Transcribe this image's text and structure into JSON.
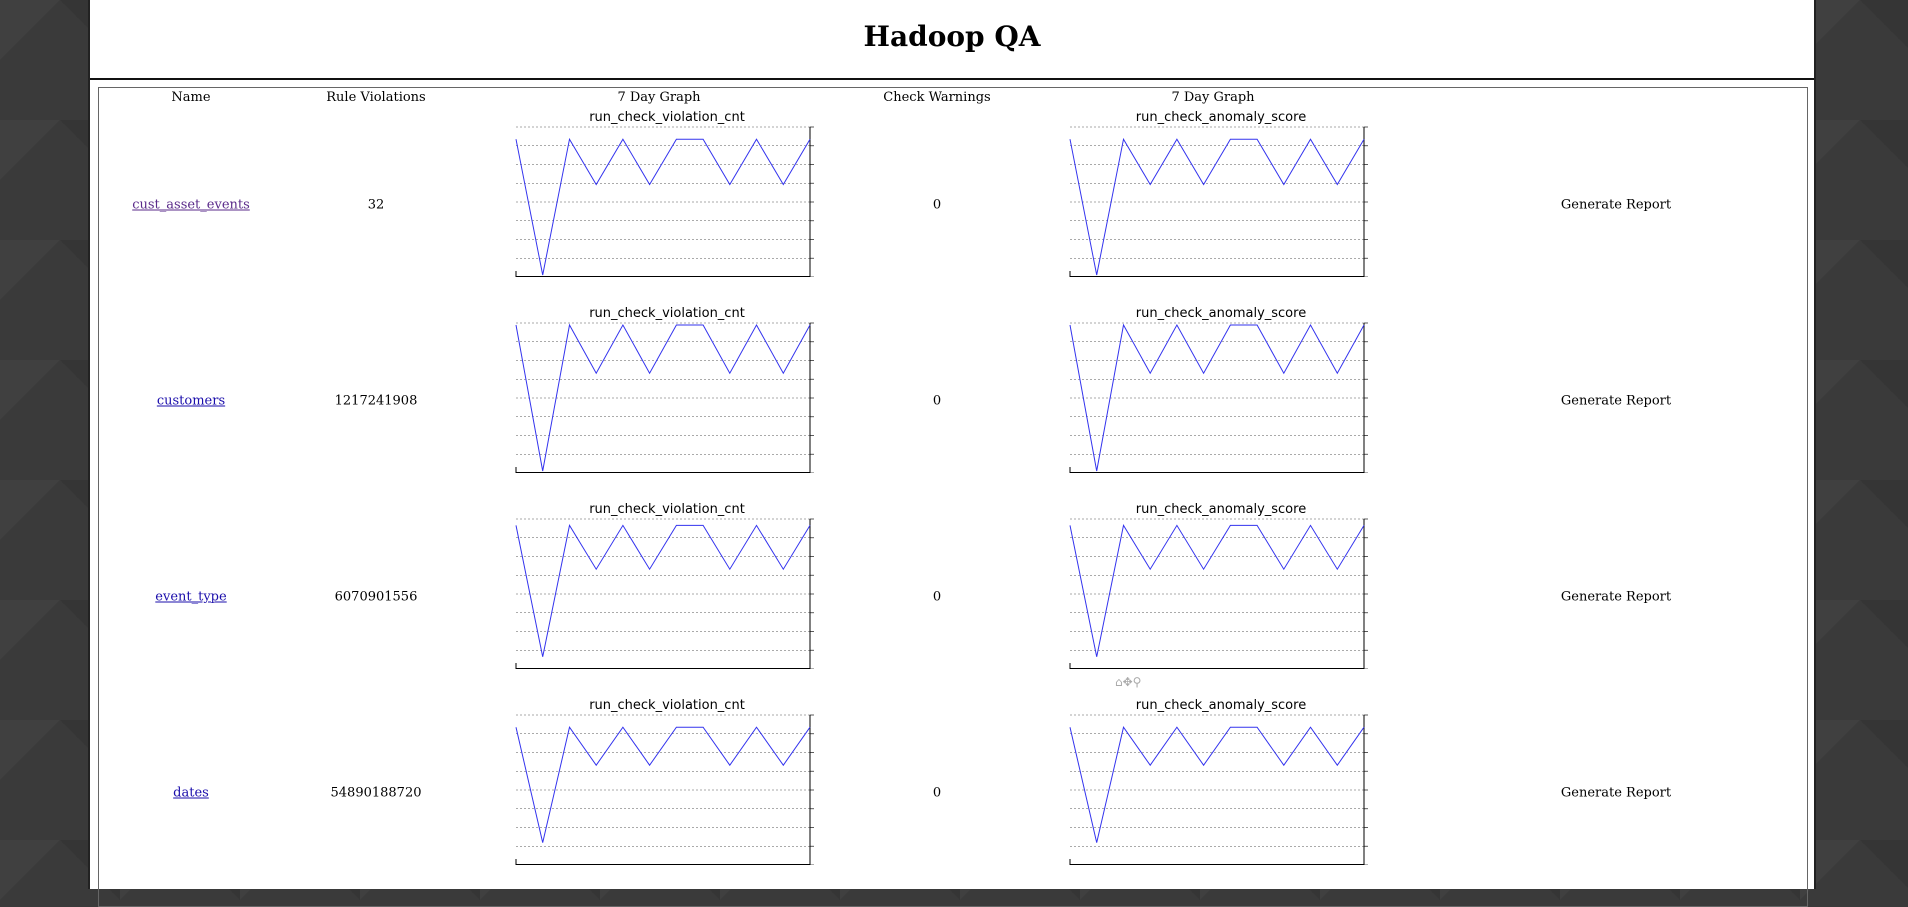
{
  "page": {
    "title": "Hadoop QA"
  },
  "table": {
    "headers": {
      "name": "Name",
      "rule_violations": "Rule Violations",
      "graph1": "7 Day Graph",
      "check_warnings": "Check Warnings",
      "graph2": "7 Day Graph"
    },
    "rows": [
      {
        "name": "cust_asset_events",
        "rule_violations": "32",
        "check_warnings": "0",
        "report": "Generate Report",
        "graph1_title": "run_check_violation_cnt",
        "graph2_title": "run_check_anomaly_score"
      },
      {
        "name": "customers",
        "rule_violations": "1217241908",
        "check_warnings": "0",
        "report": "Generate Report",
        "graph1_title": "run_check_violation_cnt",
        "graph2_title": "run_check_anomaly_score"
      },
      {
        "name": "event_type",
        "rule_violations": "6070901556",
        "check_warnings": "0",
        "report": "Generate Report",
        "graph1_title": "run_check_violation_cnt",
        "graph2_title": "run_check_anomaly_score"
      },
      {
        "name": "dates",
        "rule_violations": "54890188720",
        "check_warnings": "0",
        "report": "Generate Report",
        "graph1_title": "run_check_violation_cnt",
        "graph2_title": "run_check_anomaly_score"
      }
    ]
  },
  "toolbar": {
    "icons": [
      "home-icon",
      "move-icon",
      "zoom-icon"
    ],
    "glyphs": "⌂✥⚲"
  },
  "chart_data": [
    {
      "type": "line",
      "title": "run_check_violation_cnt",
      "values": [
        0.93,
        0.0,
        0.93,
        0.62,
        0.93,
        0.62,
        0.93,
        0.93,
        0.62,
        0.93,
        0.62,
        0.93
      ],
      "color": "#3333ee"
    },
    {
      "type": "line",
      "title": "run_check_anomaly_score",
      "values": [
        0.93,
        0.0,
        0.93,
        0.62,
        0.93,
        0.62,
        0.93,
        0.93,
        0.62,
        0.93,
        0.62,
        0.93
      ],
      "color": "#3333ee"
    },
    {
      "type": "line",
      "title": "run_check_violation_cnt",
      "values": [
        1.0,
        0.0,
        1.0,
        0.67,
        1.0,
        0.67,
        1.0,
        1.0,
        0.67,
        1.0,
        0.67,
        1.0
      ],
      "color": "#3333ee"
    },
    {
      "type": "line",
      "title": "run_check_anomaly_score",
      "values": [
        1.0,
        0.0,
        1.0,
        0.67,
        1.0,
        0.67,
        1.0,
        1.0,
        0.67,
        1.0,
        0.67,
        1.0
      ],
      "color": "#3333ee"
    },
    {
      "type": "line",
      "title": "run_check_violation_cnt",
      "values": [
        0.97,
        0.07,
        0.97,
        0.67,
        0.97,
        0.67,
        0.97,
        0.97,
        0.67,
        0.97,
        0.67,
        0.97
      ],
      "color": "#3333ee"
    },
    {
      "type": "line",
      "title": "run_check_anomaly_score",
      "values": [
        0.97,
        0.07,
        0.97,
        0.67,
        0.97,
        0.67,
        0.97,
        0.97,
        0.67,
        0.97,
        0.67,
        0.97
      ],
      "color": "#3333ee"
    },
    {
      "type": "line",
      "title": "run_check_violation_cnt",
      "values": [
        0.93,
        0.14,
        0.93,
        0.67,
        0.93,
        0.67,
        0.93,
        0.93,
        0.67,
        0.93,
        0.67,
        0.93
      ],
      "color": "#3333ee"
    },
    {
      "type": "line",
      "title": "run_check_anomaly_score",
      "values": [
        0.93,
        0.14,
        0.93,
        0.67,
        0.93,
        0.67,
        0.93,
        0.93,
        0.67,
        0.93,
        0.67,
        0.93
      ],
      "color": "#3333ee"
    }
  ]
}
